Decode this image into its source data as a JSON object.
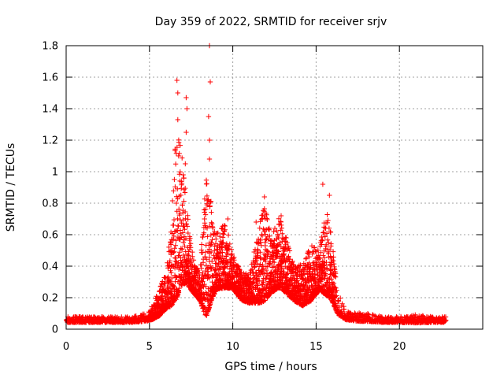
{
  "chart_data": {
    "type": "scatter",
    "title": "Day 359 of 2022, SRMTID for receiver srjv",
    "xlabel": "GPS time / hours",
    "ylabel": "SRMTID / TECUs",
    "xlim": [
      0,
      25
    ],
    "ylim": [
      0,
      1.8
    ],
    "xticks": [
      "0",
      "5",
      "10",
      "15",
      "20"
    ],
    "yticks": [
      "0",
      "0.2",
      "0.4",
      "0.6",
      "0.8",
      "1",
      "1.2",
      "1.4",
      "1.6",
      "1.8"
    ],
    "grid": true,
    "marker": "+",
    "color": "#ff0000",
    "series": [
      {
        "name": "SRMTID",
        "envelope": {
          "hours": [
            0,
            1,
            2,
            3,
            4,
            4.8,
            5.2,
            5.6,
            6.0,
            6.3,
            6.6,
            6.9,
            7.2,
            7.5,
            8.0,
            8.4,
            8.7,
            9.0,
            9.5,
            10.0,
            10.5,
            11.0,
            11.5,
            11.9,
            12.3,
            12.8,
            13.2,
            13.7,
            14.2,
            14.7,
            15.2,
            15.6,
            15.9,
            16.3,
            16.8,
            17.5,
            18,
            19,
            20,
            21,
            22,
            22.8
          ],
          "base": [
            0.05,
            0.05,
            0.05,
            0.05,
            0.05,
            0.06,
            0.08,
            0.12,
            0.18,
            0.25,
            0.4,
            0.45,
            0.4,
            0.3,
            0.22,
            0.25,
            0.3,
            0.32,
            0.35,
            0.3,
            0.22,
            0.2,
            0.25,
            0.3,
            0.3,
            0.35,
            0.3,
            0.22,
            0.2,
            0.25,
            0.3,
            0.32,
            0.28,
            0.12,
            0.07,
            0.06,
            0.06,
            0.05,
            0.05,
            0.05,
            0.05,
            0.05
          ],
          "spread": [
            0.02,
            0.02,
            0.02,
            0.02,
            0.02,
            0.03,
            0.05,
            0.1,
            0.15,
            0.3,
            0.6,
            0.5,
            0.3,
            0.15,
            0.1,
            0.5,
            0.35,
            0.2,
            0.25,
            0.12,
            0.1,
            0.1,
            0.25,
            0.35,
            0.2,
            0.25,
            0.2,
            0.12,
            0.15,
            0.2,
            0.15,
            0.3,
            0.25,
            0.08,
            0.03,
            0.03,
            0.03,
            0.02,
            0.02,
            0.03,
            0.02,
            0.02
          ]
        },
        "notable_points": [
          {
            "x": 8.6,
            "y": 1.8
          },
          {
            "x": 6.65,
            "y": 1.58
          },
          {
            "x": 8.65,
            "y": 1.57
          },
          {
            "x": 6.7,
            "y": 1.5
          },
          {
            "x": 7.2,
            "y": 1.47
          },
          {
            "x": 7.25,
            "y": 1.4
          },
          {
            "x": 8.55,
            "y": 1.35
          },
          {
            "x": 6.7,
            "y": 1.33
          },
          {
            "x": 7.2,
            "y": 1.25
          },
          {
            "x": 8.6,
            "y": 1.2
          },
          {
            "x": 6.75,
            "y": 1.1
          },
          {
            "x": 8.6,
            "y": 1.08
          },
          {
            "x": 7.15,
            "y": 1.05
          },
          {
            "x": 15.4,
            "y": 0.92
          },
          {
            "x": 15.8,
            "y": 0.85
          },
          {
            "x": 11.9,
            "y": 0.84
          },
          {
            "x": 12.9,
            "y": 0.72
          },
          {
            "x": 9.7,
            "y": 0.7
          },
          {
            "x": 11.4,
            "y": 0.68
          }
        ]
      }
    ]
  }
}
